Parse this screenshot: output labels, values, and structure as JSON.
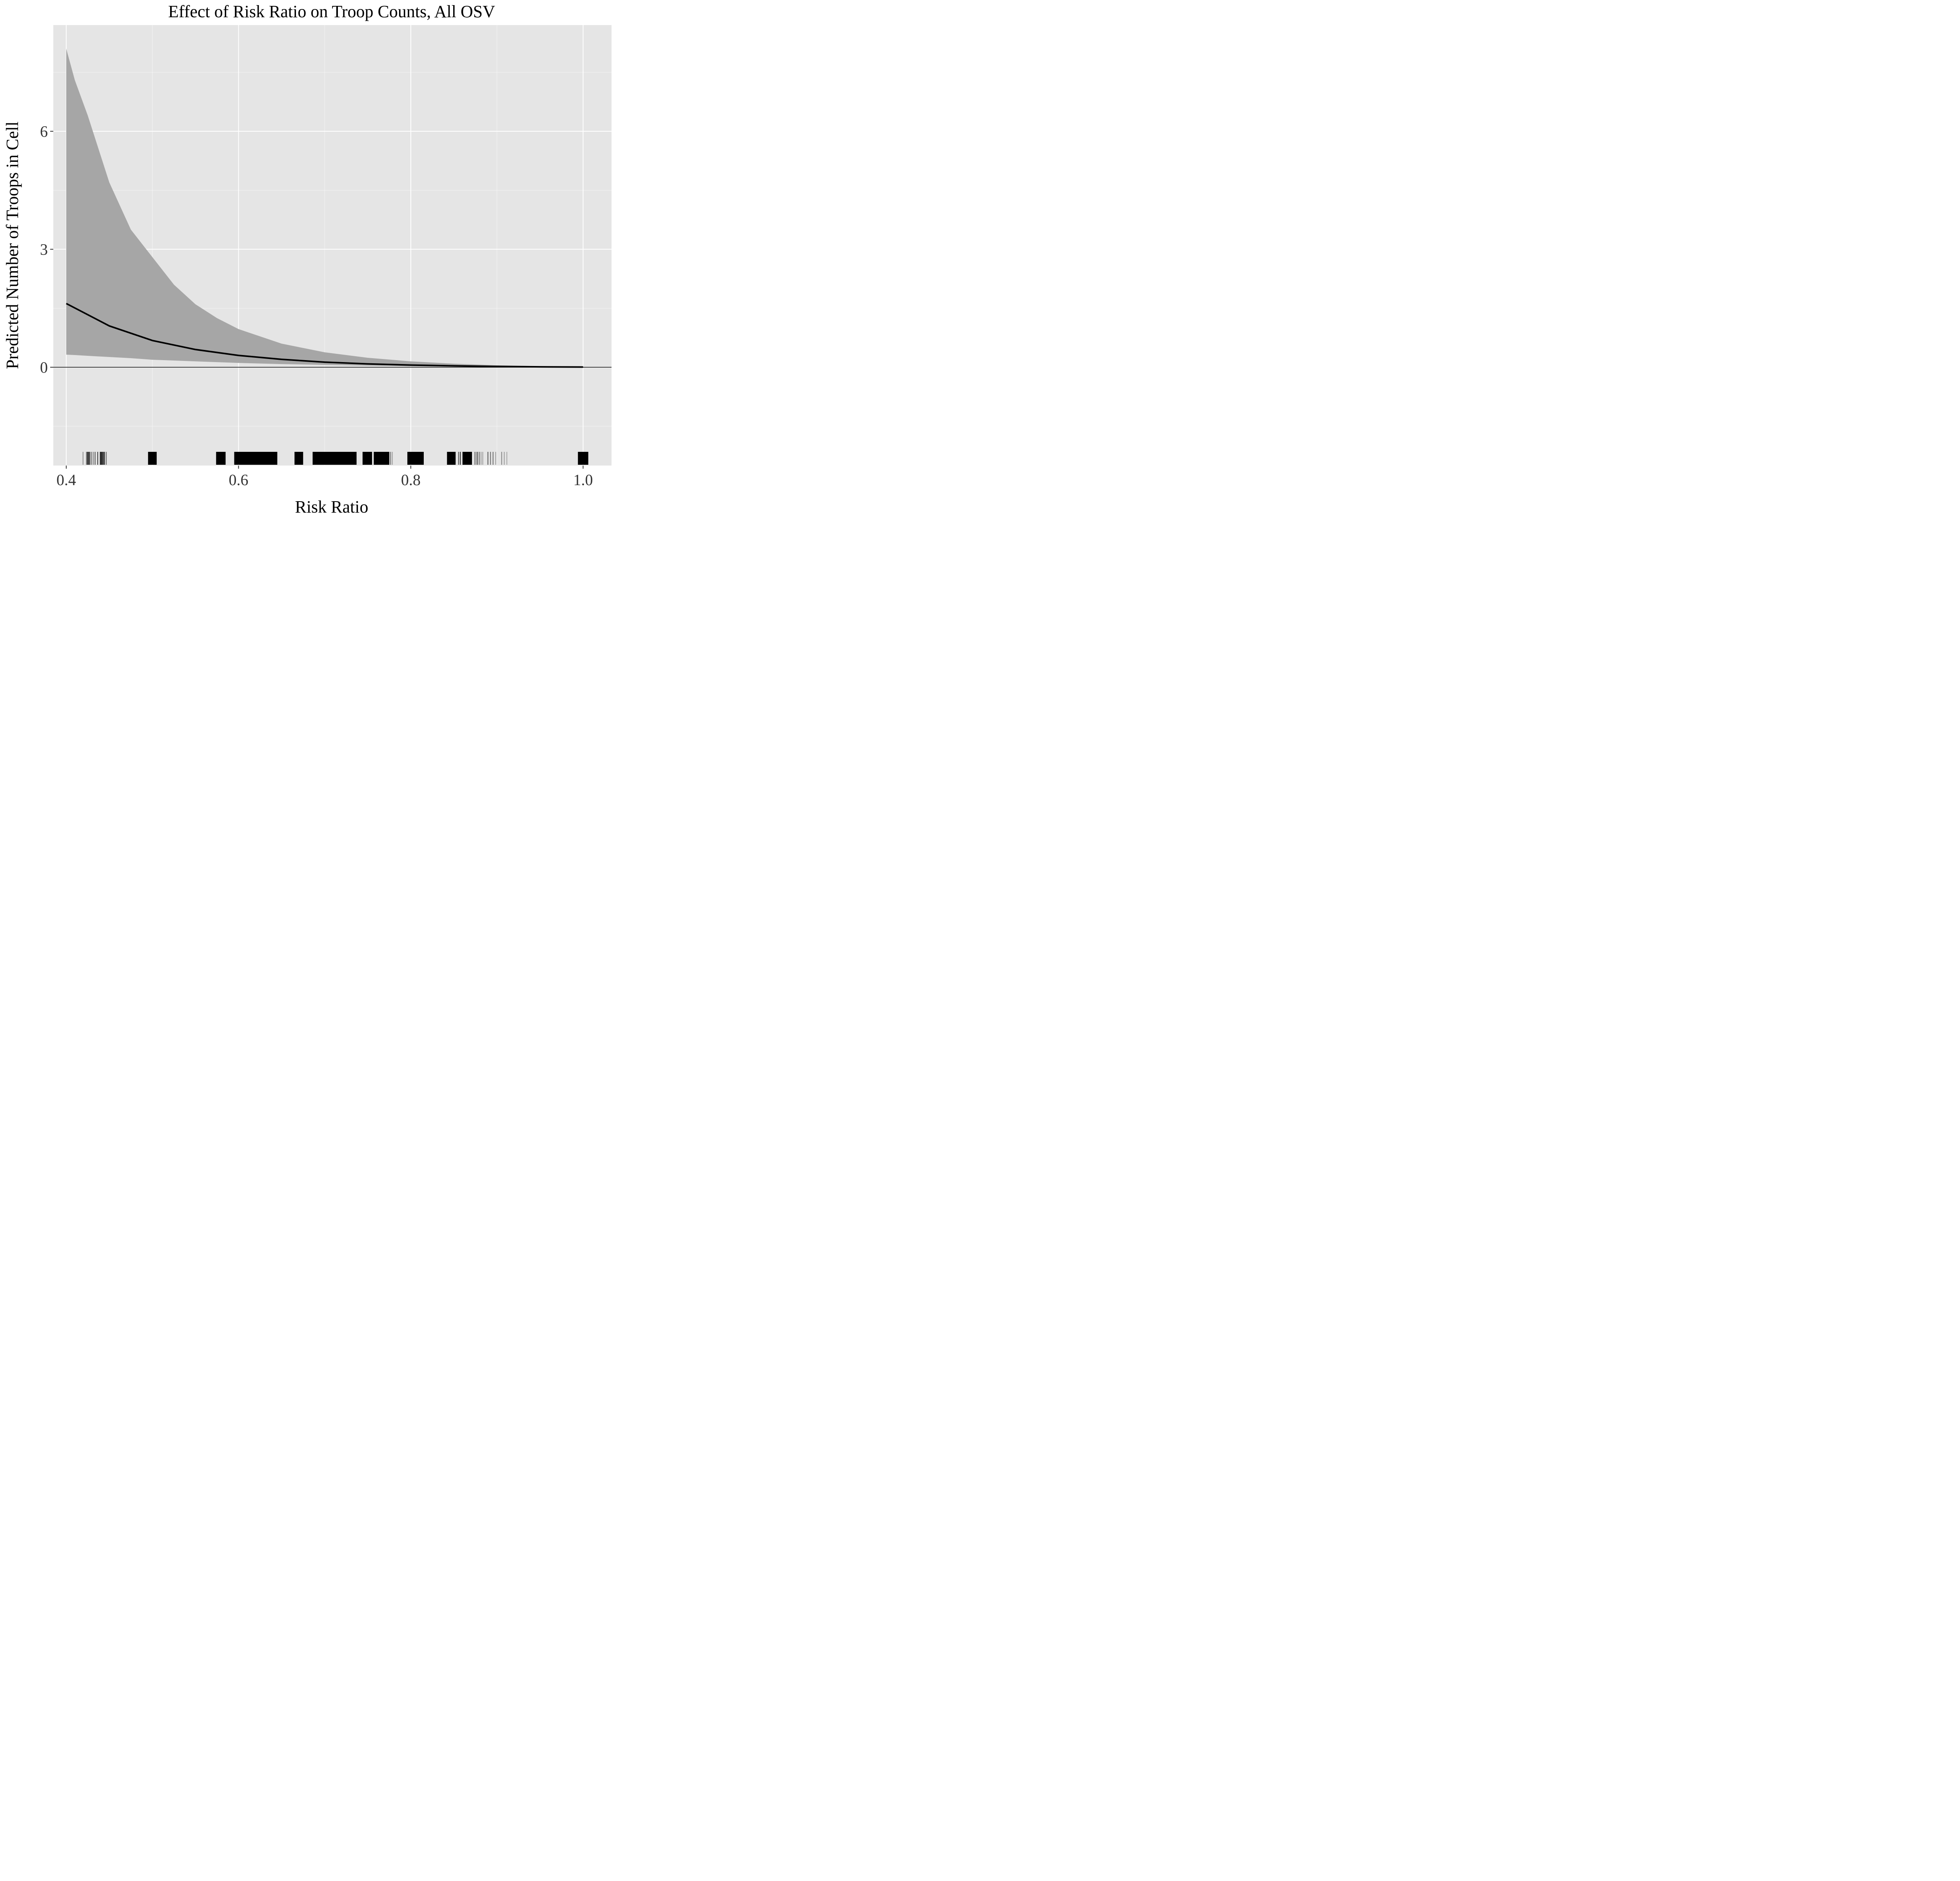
{
  "chart_data": {
    "type": "line",
    "title": "Effect of Risk Ratio on Troop Counts, All OSV",
    "xlabel": "Risk Ratio",
    "ylabel": "Predicted Number of Troops in Cell",
    "xlim": [
      0.385,
      1.033
    ],
    "ylim": [
      -2.5,
      8.7
    ],
    "x_ticks": [
      0.4,
      0.6,
      0.8,
      1.0
    ],
    "x_tick_labels": [
      "0.4",
      "0.6",
      "0.8",
      "1.0"
    ],
    "y_ticks": [
      0,
      3,
      6
    ],
    "y_tick_labels": [
      "0",
      "3",
      "6"
    ],
    "grid": true,
    "reference_line_y": 0,
    "series": [
      {
        "role": "estimate",
        "x": [
          0.4,
          0.45,
          0.5,
          0.55,
          0.6,
          0.65,
          0.7,
          0.75,
          0.8,
          0.85,
          0.9,
          0.95,
          1.0
        ],
        "y": [
          1.62,
          1.05,
          0.68,
          0.45,
          0.3,
          0.2,
          0.13,
          0.085,
          0.055,
          0.035,
          0.02,
          0.01,
          0.005
        ]
      },
      {
        "role": "confidence_band",
        "x": [
          0.4,
          0.41,
          0.425,
          0.45,
          0.475,
          0.5,
          0.525,
          0.55,
          0.575,
          0.6,
          0.65,
          0.7,
          0.75,
          0.8,
          0.85,
          0.9,
          0.95,
          1.0
        ],
        "lower": [
          0.32,
          0.31,
          0.29,
          0.26,
          0.23,
          0.19,
          0.17,
          0.15,
          0.13,
          0.11,
          0.08,
          0.06,
          0.04,
          0.025,
          0.015,
          0.008,
          0.004,
          0.002
        ],
        "upper": [
          8.1,
          7.3,
          6.4,
          4.7,
          3.5,
          2.8,
          2.1,
          1.6,
          1.25,
          0.97,
          0.6,
          0.38,
          0.24,
          0.15,
          0.09,
          0.05,
          0.025,
          0.01
        ]
      }
    ],
    "rug": {
      "segments": [
        [
          0.419,
          0.42
        ],
        [
          0.423,
          0.424
        ],
        [
          0.424,
          0.425
        ],
        [
          0.425,
          0.426
        ],
        [
          0.426,
          0.427
        ],
        [
          0.427,
          0.428
        ],
        [
          0.429,
          0.43
        ],
        [
          0.431,
          0.432
        ],
        [
          0.433,
          0.434
        ],
        [
          0.436,
          0.437
        ],
        [
          0.439,
          0.44
        ],
        [
          0.44,
          0.441
        ],
        [
          0.441,
          0.442
        ],
        [
          0.442,
          0.443
        ],
        [
          0.443,
          0.444
        ],
        [
          0.444,
          0.445
        ],
        [
          0.446,
          0.447
        ],
        [
          0.495,
          0.505
        ],
        [
          0.574,
          0.585
        ],
        [
          0.595,
          0.645
        ],
        [
          0.665,
          0.675
        ],
        [
          0.686,
          0.737
        ],
        [
          0.744,
          0.755
        ],
        [
          0.757,
          0.775
        ],
        [
          0.776,
          0.777
        ],
        [
          0.778,
          0.779
        ],
        [
          0.796,
          0.815
        ],
        [
          0.842,
          0.852
        ],
        [
          0.855,
          0.856
        ],
        [
          0.857,
          0.858
        ],
        [
          0.86,
          0.871
        ],
        [
          0.874,
          0.875
        ],
        [
          0.876,
          0.877
        ],
        [
          0.877,
          0.878
        ],
        [
          0.879,
          0.88
        ],
        [
          0.881,
          0.882
        ],
        [
          0.883,
          0.884
        ],
        [
          0.889,
          0.89
        ],
        [
          0.892,
          0.893
        ],
        [
          0.895,
          0.896
        ],
        [
          0.898,
          0.899
        ],
        [
          0.905,
          0.906
        ],
        [
          0.908,
          0.909
        ],
        [
          0.911,
          0.912
        ],
        [
          0.994,
          1.006
        ]
      ],
      "opacity": [
        0.35,
        0.5,
        0.7,
        0.8,
        0.6,
        0.7,
        0.5,
        0.4,
        0.6,
        0.7,
        0.8,
        0.9,
        0.7,
        0.8,
        0.6,
        0.7,
        0.5,
        1,
        1,
        1,
        1,
        1,
        1,
        1,
        0.5,
        0.3,
        1,
        1,
        0.6,
        0.8,
        1,
        0.6,
        0.4,
        0.5,
        0.5,
        0.3,
        0.3,
        0.6,
        0.5,
        0.5,
        0.3,
        0.4,
        0.3,
        0.25,
        1
      ]
    },
    "colors": {
      "panel": "#e5e5e5",
      "grid": "#ffffff",
      "band": "#a6a6a6",
      "line": "#000000",
      "rug": "#000000",
      "text": "#333333"
    }
  }
}
